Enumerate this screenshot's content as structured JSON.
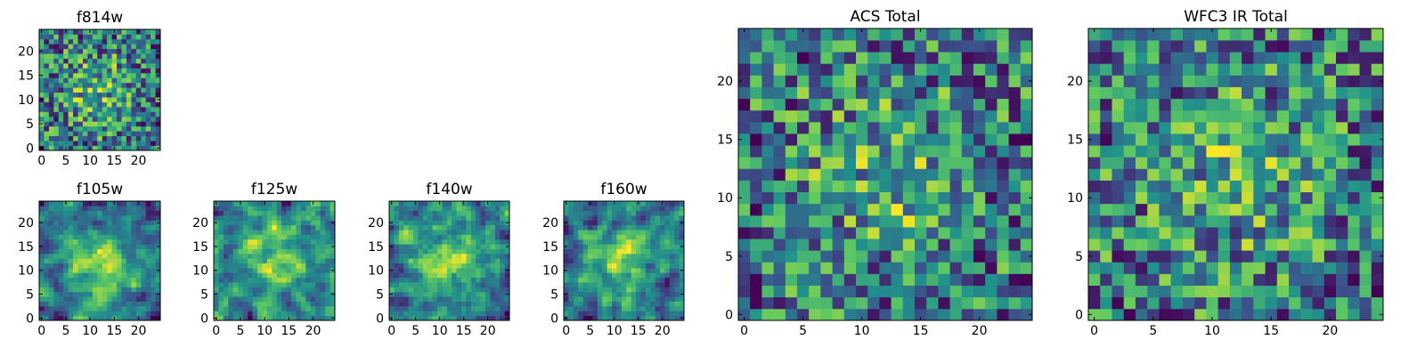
{
  "colormap": {
    "name": "viridis",
    "stops": [
      "#440154",
      "#3b528b",
      "#21918c",
      "#5ec962",
      "#fde725"
    ]
  },
  "chart_data": [
    {
      "type": "heatmap",
      "title": "f814w",
      "grid_size": 25,
      "x_ticks": [
        "0",
        "5",
        "10",
        "15",
        "20"
      ],
      "y_ticks": [
        "0",
        "5",
        "10",
        "15",
        "20"
      ],
      "values_note_seed": 11,
      "bright_center": [
        11,
        12
      ],
      "center_strength": 0.25,
      "noise_strength": 0.85,
      "smooth": 0
    },
    {
      "type": "heatmap",
      "title": "f105w",
      "grid_size": 25,
      "x_ticks": [
        "0",
        "5",
        "10",
        "15",
        "20"
      ],
      "y_ticks": [
        "0",
        "5",
        "10",
        "15",
        "20"
      ],
      "values_note_seed": 23,
      "bright_center": [
        12,
        11
      ],
      "center_strength": 0.45,
      "noise_strength": 0.75,
      "smooth": 1
    },
    {
      "type": "heatmap",
      "title": "f125w",
      "grid_size": 25,
      "x_ticks": [
        "0",
        "5",
        "10",
        "15",
        "20"
      ],
      "y_ticks": [
        "0",
        "5",
        "10",
        "15",
        "20"
      ],
      "values_note_seed": 37,
      "bright_center": [
        12,
        13
      ],
      "center_strength": 0.35,
      "noise_strength": 0.75,
      "smooth": 1
    },
    {
      "type": "heatmap",
      "title": "f140w",
      "grid_size": 25,
      "x_ticks": [
        "0",
        "5",
        "10",
        "15",
        "20"
      ],
      "y_ticks": [
        "0",
        "5",
        "10",
        "15",
        "20"
      ],
      "values_note_seed": 53,
      "bright_center": [
        11,
        12
      ],
      "center_strength": 0.3,
      "noise_strength": 0.8,
      "smooth": 1
    },
    {
      "type": "heatmap",
      "title": "f160w",
      "grid_size": 25,
      "x_ticks": [
        "0",
        "5",
        "10",
        "15",
        "20"
      ],
      "y_ticks": [
        "0",
        "5",
        "10",
        "15",
        "20"
      ],
      "values_note_seed": 71,
      "bright_center": [
        12,
        12
      ],
      "center_strength": 0.4,
      "noise_strength": 0.75,
      "smooth": 1
    },
    {
      "type": "heatmap",
      "title": "ACS Total",
      "grid_size": 25,
      "x_ticks": [
        "0",
        "5",
        "10",
        "15",
        "20"
      ],
      "y_ticks": [
        "0",
        "5",
        "10",
        "15",
        "20"
      ],
      "values_note_seed": 89,
      "bright_center": [
        12,
        12
      ],
      "center_strength": 0.25,
      "noise_strength": 0.8,
      "smooth": 0
    },
    {
      "type": "heatmap",
      "title": "WFC3 IR Total",
      "grid_size": 25,
      "x_ticks": [
        "0",
        "5",
        "10",
        "15",
        "20"
      ],
      "y_ticks": [
        "0",
        "5",
        "10",
        "15",
        "20"
      ],
      "values_note_seed": 97,
      "bright_center": [
        12,
        12
      ],
      "center_strength": 0.2,
      "noise_strength": 0.8,
      "smooth": 0
    }
  ]
}
